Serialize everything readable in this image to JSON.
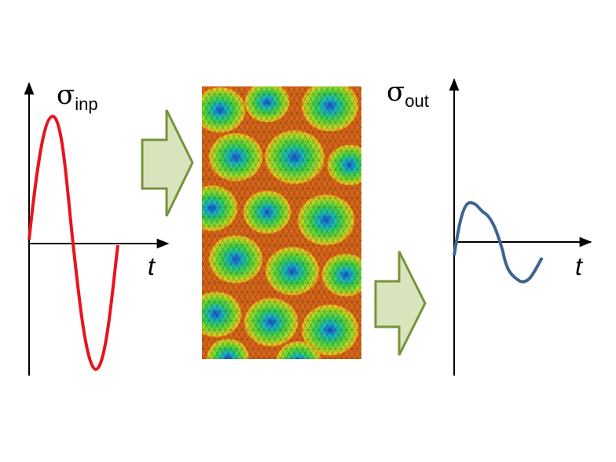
{
  "input_plot": {
    "symbol": "σ",
    "subscript": "inp",
    "x_label": "t"
  },
  "output_plot": {
    "symbol": "σ",
    "subscript": "out",
    "x_label": "t"
  }
}
